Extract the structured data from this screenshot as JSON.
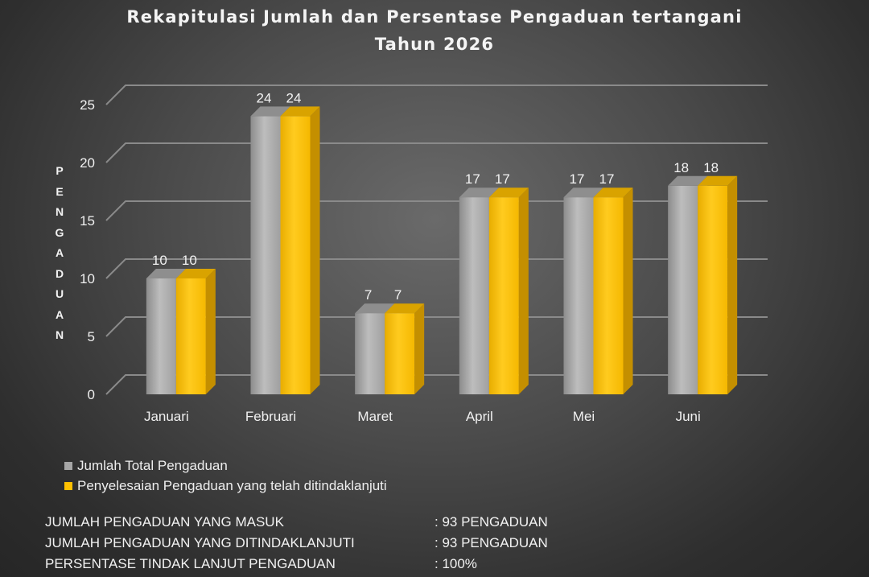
{
  "chart_data": {
    "type": "bar",
    "title": "Rekapitulasi Jumlah dan Persentase Pengaduan tertangani",
    "subtitle": "Tahun 2026",
    "ylabel": "PENGADUAN",
    "xlabel": "",
    "categories": [
      "Januari",
      "Februari",
      "Maret",
      "April",
      "Mei",
      "Juni"
    ],
    "series": [
      {
        "name": "Jumlah Total Pengaduan",
        "values": [
          10,
          24,
          7,
          17,
          17,
          18
        ],
        "color": "#a6a6a6"
      },
      {
        "name": "Penyelesaian Pengaduan yang telah ditindaklanjuti",
        "values": [
          10,
          24,
          7,
          17,
          17,
          18
        ],
        "color": "#ffc000"
      }
    ],
    "ylim": [
      0,
      25
    ],
    "yticks": [
      "0",
      "5",
      "10",
      "15",
      "20",
      "25"
    ],
    "grid": true,
    "legend": "bottom-left"
  },
  "summary": [
    {
      "label": "JUMLAH PENGADUAN YANG MASUK",
      "value": ": 93 PENGADUAN"
    },
    {
      "label": "JUMLAH PENGADUAN YANG DITINDAKLANJUTI",
      "value": ": 93 PENGADUAN"
    },
    {
      "label": "PERSENTASE TINDAK LANJUT PENGADUAN",
      "value": ": 100%"
    }
  ]
}
